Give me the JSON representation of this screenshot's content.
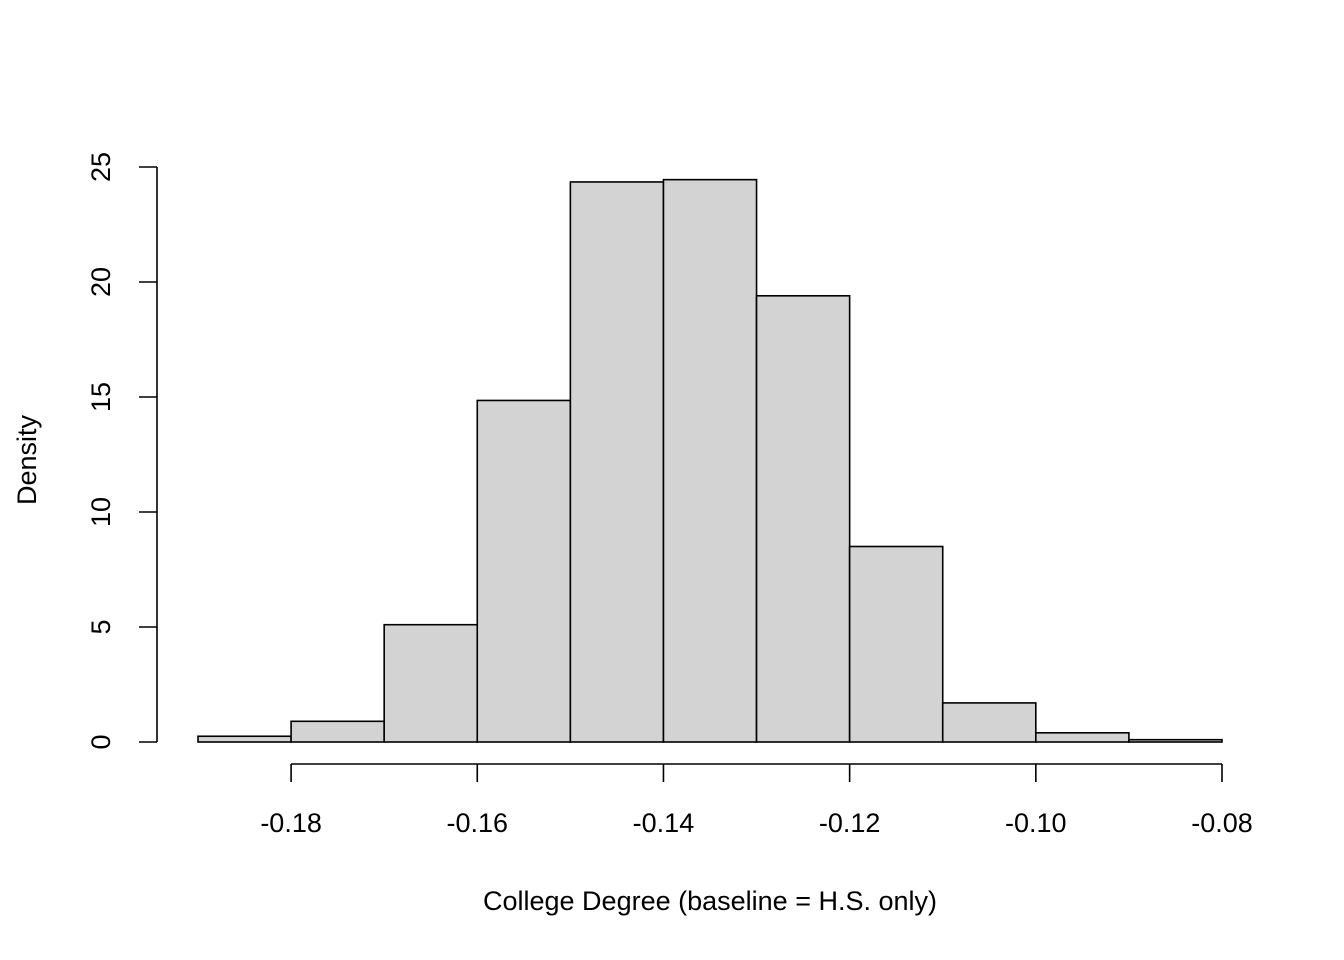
{
  "chart_data": {
    "type": "bar",
    "subtype": "histogram",
    "title": "",
    "xlabel": "College Degree (baseline = H.S. only)",
    "ylabel": "Density",
    "xlim": [
      -0.19,
      -0.08
    ],
    "ylim": [
      0,
      25
    ],
    "bins": [
      {
        "x0": -0.19,
        "x1": -0.18,
        "value": 0.25
      },
      {
        "x0": -0.18,
        "x1": -0.17,
        "value": 0.9
      },
      {
        "x0": -0.17,
        "x1": -0.16,
        "value": 5.1
      },
      {
        "x0": -0.16,
        "x1": -0.15,
        "value": 14.85
      },
      {
        "x0": -0.15,
        "x1": -0.14,
        "value": 24.35
      },
      {
        "x0": -0.14,
        "x1": -0.13,
        "value": 24.45
      },
      {
        "x0": -0.13,
        "x1": -0.12,
        "value": 19.4
      },
      {
        "x0": -0.12,
        "x1": -0.11,
        "value": 8.5
      },
      {
        "x0": -0.11,
        "x1": -0.1,
        "value": 1.7
      },
      {
        "x0": -0.1,
        "x1": -0.09,
        "value": 0.4
      },
      {
        "x0": -0.09,
        "x1": -0.08,
        "value": 0.1
      }
    ],
    "x_ticks": [
      -0.18,
      -0.16,
      -0.14,
      -0.12,
      -0.1,
      -0.08
    ],
    "x_tick_labels": [
      "-0.18",
      "-0.16",
      "-0.14",
      "-0.12",
      "-0.10",
      "-0.08"
    ],
    "y_ticks": [
      0,
      5,
      10,
      15,
      20,
      25
    ],
    "y_tick_labels": [
      "0",
      "5",
      "10",
      "15",
      "20",
      "25"
    ],
    "grid": false,
    "legend": "none",
    "colors": {
      "bar_fill": "#d3d3d3",
      "bar_stroke": "#000000"
    }
  }
}
